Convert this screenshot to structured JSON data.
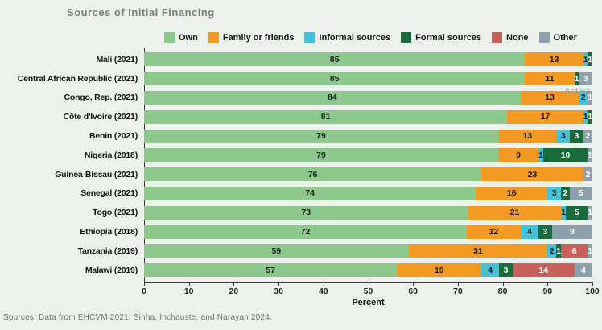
{
  "title": "Sources of Initial Financing",
  "colors": {
    "own": "#8DC88D",
    "family": "#F49A23",
    "informal": "#45C2D8",
    "formal": "#1A6B3B",
    "none": "#C9605C",
    "other": "#8EA0AB"
  },
  "label_colors": {
    "own": "#1C1C1C",
    "family": "#1C1C1C",
    "informal": "#1C1C1C",
    "formal": "#FFFFFF",
    "none": "#FFFFFF",
    "other": "#FFFFFF"
  },
  "chart_data": {
    "type": "bar",
    "orientation": "horizontal-stacked",
    "title": "Sources of Initial Financing",
    "categories": [
      "Mali (2021)",
      "Central African Republic (2021)",
      "Congo, Rep. (2021)",
      "Côte d'Ivoire (2021)",
      "Benin (2021)",
      "Nigeria (2018)",
      "Guinea-Bissau (2021)",
      "Senegal (2021)",
      "Togo (2021)",
      "Ethiopia (2018)",
      "Tanzania (2019)",
      "Malawi (2019)"
    ],
    "series": [
      {
        "key": "own",
        "name": "Own",
        "values": [
          85,
          85,
          84,
          81,
          79,
          79,
          76,
          74,
          73,
          72,
          59,
          57
        ]
      },
      {
        "key": "family",
        "name": "Family or friends",
        "values": [
          13,
          11,
          13,
          17,
          13,
          9,
          23,
          16,
          21,
          12,
          31,
          19
        ]
      },
      {
        "key": "informal",
        "name": "Informal sources",
        "values": [
          1,
          0,
          2,
          1,
          3,
          1,
          0,
          3,
          1,
          4,
          2,
          4
        ]
      },
      {
        "key": "formal",
        "name": "Formal sources",
        "values": [
          1,
          1,
          0,
          1,
          3,
          10,
          0,
          2,
          5,
          3,
          1,
          3
        ]
      },
      {
        "key": "none",
        "name": "None",
        "values": [
          0,
          0,
          0,
          0,
          0,
          0,
          0,
          0,
          0,
          0,
          6,
          14
        ]
      },
      {
        "key": "other",
        "name": "Other",
        "values": [
          0,
          3,
          1,
          0,
          2,
          1,
          2,
          5,
          1,
          9,
          1,
          4
        ]
      }
    ],
    "xlabel": "Percent",
    "xlim": [
      0,
      100
    ],
    "xticks": [
      0,
      10,
      20,
      30,
      40,
      50,
      60,
      70,
      80,
      90,
      100
    ],
    "grid": false,
    "legend_position": "top",
    "value_labels": "inside-segments"
  },
  "source_note": "Sources: Data from EHCVM 2021; Sinha, Inchauste, and Narayan 2024.",
  "watermark": "Activa"
}
